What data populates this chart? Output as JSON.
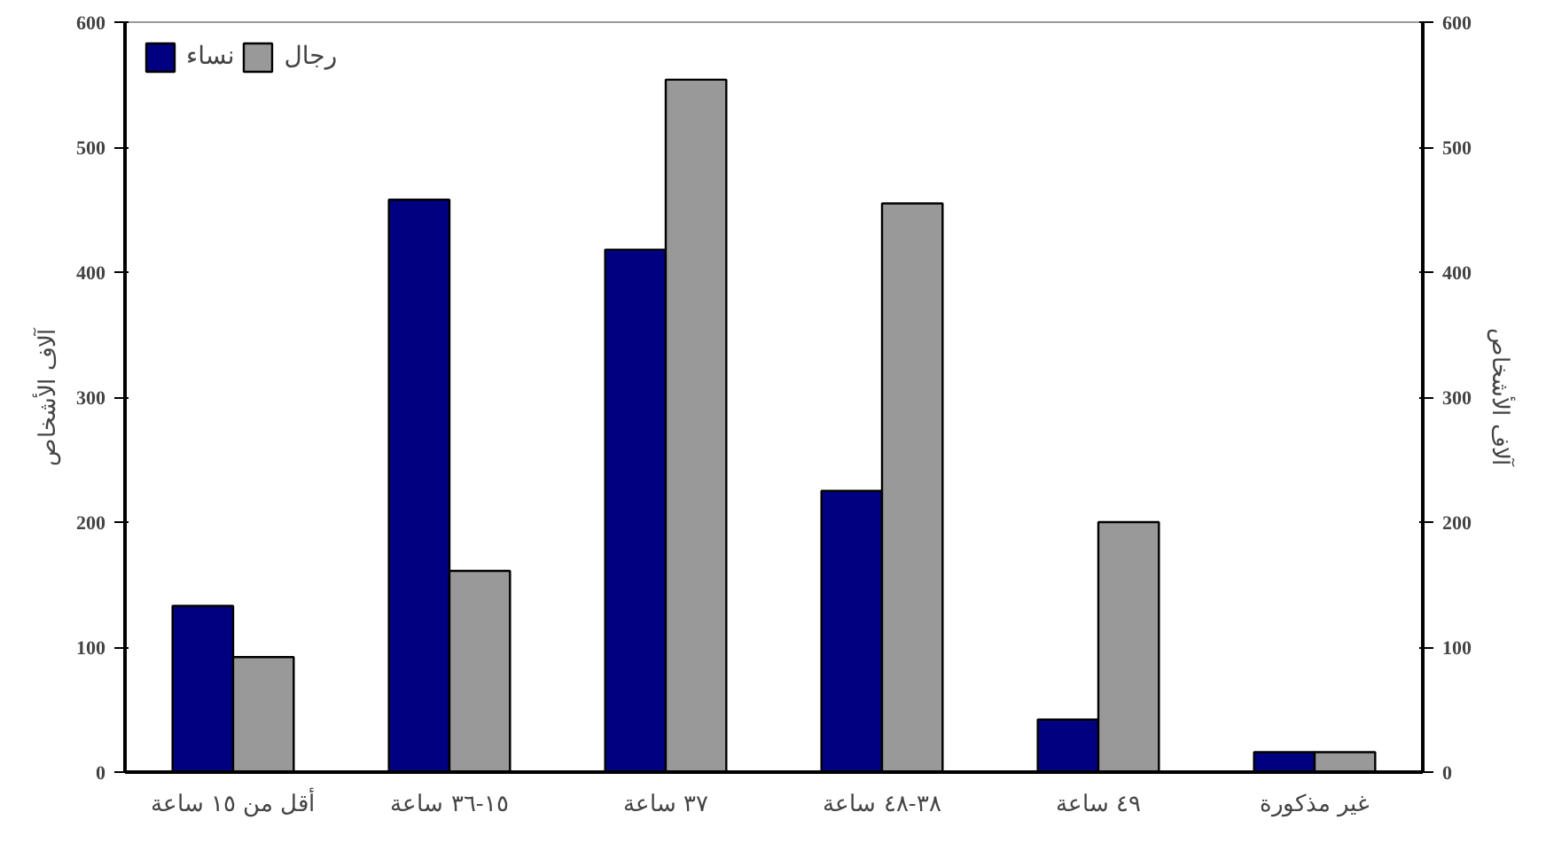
{
  "chart_data": {
    "type": "bar",
    "ylabel": "آلاف الأشخاص",
    "y2label": "آلاف الأشخاص",
    "categories": [
      "أقل من ١٥ ساعة",
      "١٥-٣٦ ساعة",
      "٣٧ ساعة",
      "٣٨-٤٨ ساعة",
      "٤٩ ساعة",
      "غير مذكورة"
    ],
    "series": [
      {
        "name": "نساء",
        "color": "#000080",
        "values": [
          133,
          458,
          418,
          225,
          42,
          16
        ]
      },
      {
        "name": "رجال",
        "color": "#999999",
        "values": [
          92,
          161,
          554,
          455,
          200,
          16
        ]
      }
    ],
    "ylim": [
      0,
      600
    ],
    "yticks": [
      0,
      100,
      200,
      300,
      400,
      500,
      600
    ],
    "y2lim": [
      0,
      600
    ],
    "y2ticks": [
      0,
      100,
      200,
      300,
      400,
      500,
      600
    ],
    "grid": false,
    "legend": "top left"
  }
}
